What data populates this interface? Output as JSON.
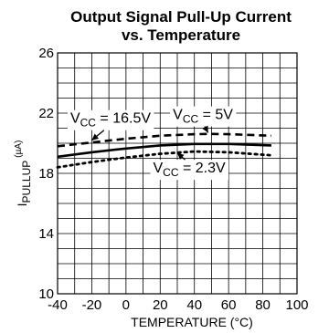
{
  "chart_data": {
    "type": "line",
    "title": "Output Signal Pull-Up Current",
    "subtitle": "vs. Temperature",
    "xlabel": "TEMPERATURE (°C)",
    "ylabel": {
      "main": "I",
      "subscript": "PULLUP",
      "unit": "(µA)"
    },
    "xlim": [
      -40,
      100
    ],
    "ylim": [
      10,
      26
    ],
    "xticks": [
      -40,
      -20,
      0,
      20,
      40,
      60,
      80,
      100
    ],
    "yticks": [
      10,
      14,
      18,
      22,
      26
    ],
    "grid": true,
    "series": [
      {
        "name": "VCC = 16.5V",
        "label": {
          "prefix": "V",
          "sub": "CC",
          "suffix": " = 16.5V"
        },
        "style": "dashed",
        "x": [
          -40,
          -20,
          0,
          20,
          40,
          50,
          60,
          85
        ],
        "y": [
          19.8,
          20.05,
          20.3,
          20.5,
          20.6,
          20.62,
          20.6,
          20.5
        ]
      },
      {
        "name": "VCC = 5V",
        "label": {
          "prefix": "V",
          "sub": "CC",
          "suffix": " = 5V"
        },
        "style": "solid",
        "x": [
          -40,
          -20,
          0,
          20,
          40,
          60,
          85
        ],
        "y": [
          19.1,
          19.4,
          19.65,
          19.85,
          19.95,
          19.95,
          19.85
        ]
      },
      {
        "name": "VCC = 2.3V",
        "label": {
          "prefix": "V",
          "sub": "CC",
          "suffix": " = 2.3V"
        },
        "style": "dotted",
        "x": [
          -40,
          -20,
          0,
          20,
          40,
          60,
          85
        ],
        "y": [
          18.4,
          18.75,
          19.05,
          19.3,
          19.45,
          19.4,
          19.2
        ]
      }
    ]
  }
}
